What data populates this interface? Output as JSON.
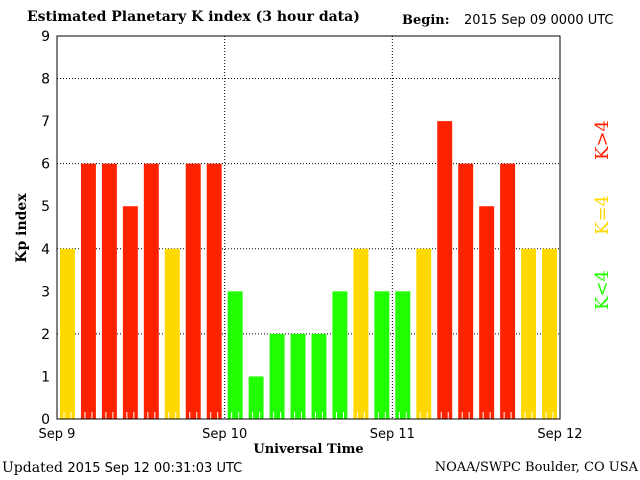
{
  "chart_data": {
    "type": "bar",
    "title": "Estimated Planetary K index (3 hour data)",
    "begin_label": "Begin:",
    "begin_value": "2015 Sep 09 0000 UTC",
    "xlabel": "Universal Time",
    "ylabel": "Kp index",
    "ylim": [
      0,
      9
    ],
    "yticks": [
      "0",
      "1",
      "2",
      "3",
      "4",
      "5",
      "6",
      "7",
      "8",
      "9"
    ],
    "xticks": [
      "Sep 9",
      "Sep 10",
      "Sep 11",
      "Sep 12"
    ],
    "values": [
      4,
      6,
      6,
      5,
      6,
      4,
      6,
      6,
      3,
      1,
      2,
      2,
      2,
      3,
      4,
      3,
      3,
      4,
      7,
      6,
      5,
      6,
      4,
      4
    ],
    "legend": [
      {
        "label": "K<4",
        "color": "#22ff00"
      },
      {
        "label": "K=4",
        "color": "#ffd800"
      },
      {
        "label": "K>4",
        "color": "#ff2200"
      }
    ],
    "grid": true
  },
  "footer": {
    "updated_label": "Updated",
    "updated_value": "2015 Sep 12 00:31:03 UTC",
    "credit": "NOAA/SWPC Boulder, CO USA"
  }
}
